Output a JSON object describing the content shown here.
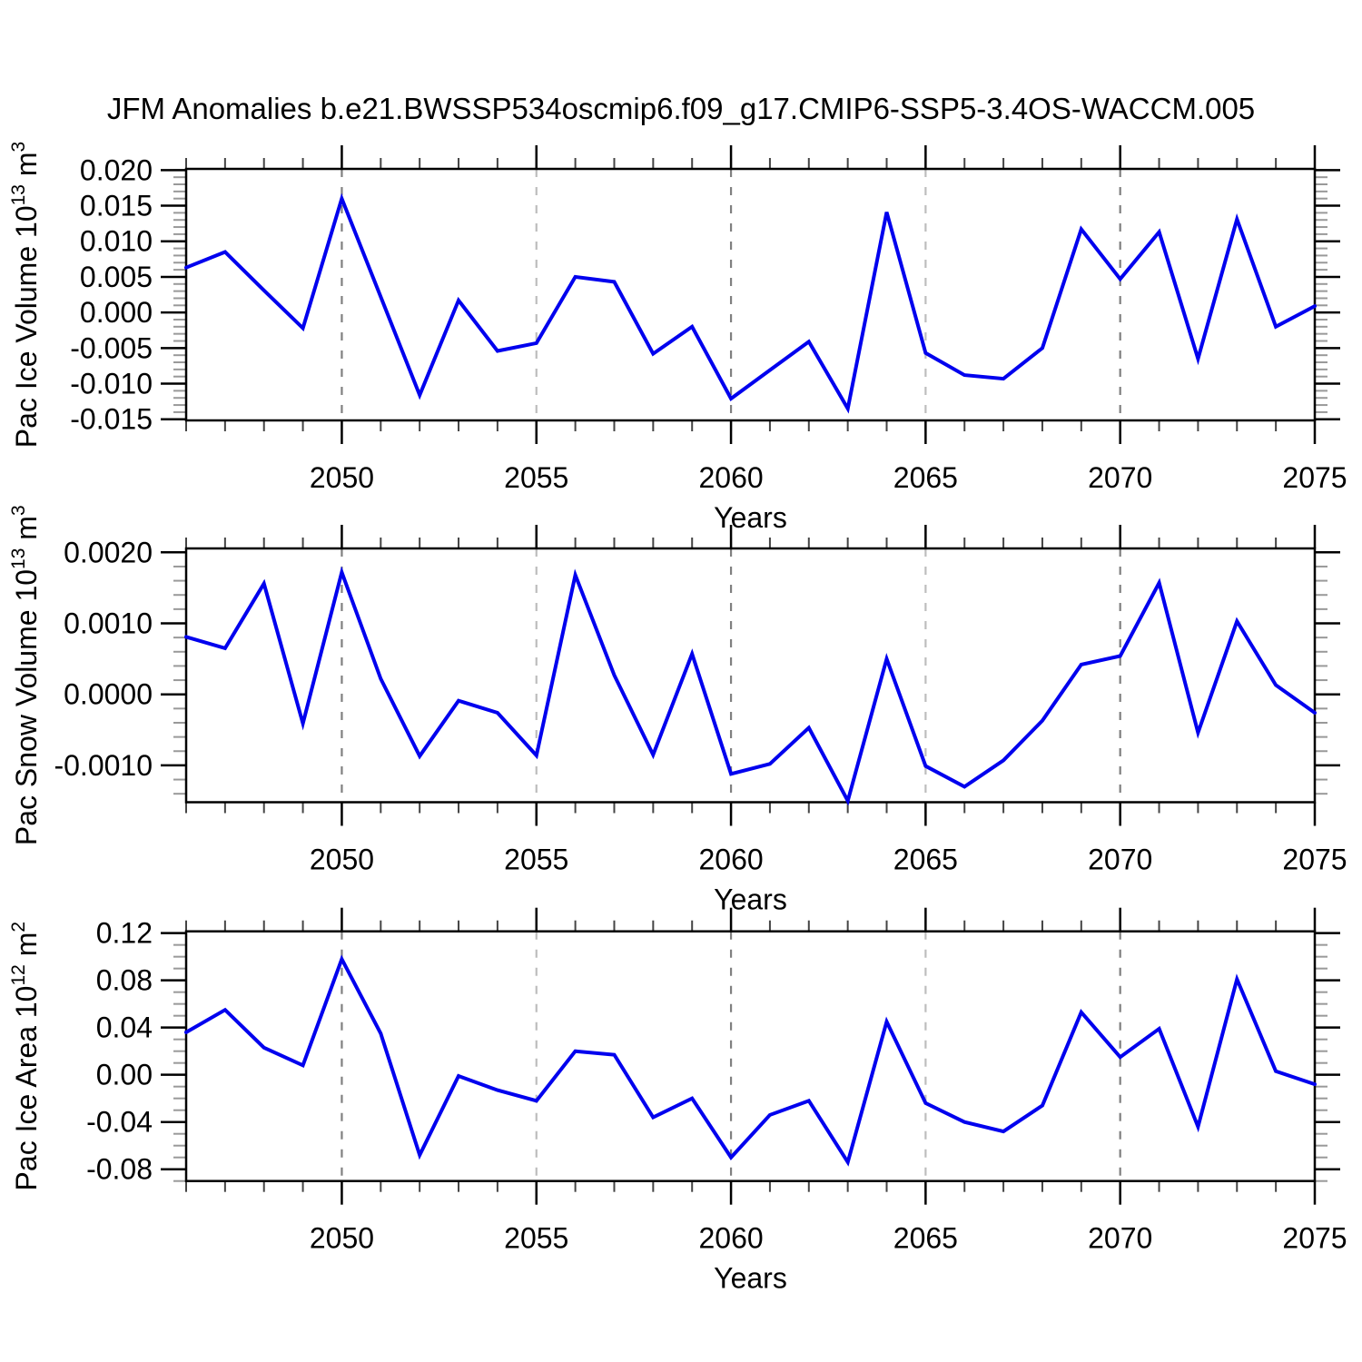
{
  "title": "JFM Anomalies b.e21.BWSSP534oscmip6.f09_g17.CMIP6-SSP5-3.4OS-WACCM.005",
  "xlabel": "Years",
  "x_axis": {
    "start": 2046,
    "end": 2075,
    "major_tick_labels": [
      "2050",
      "2055",
      "2060",
      "2065",
      "2070",
      "2075"
    ],
    "major_ticks": [
      2050,
      2055,
      2060,
      2065,
      2070,
      2075
    ],
    "gridlines_dark": [
      2050,
      2060,
      2070
    ],
    "gridlines_light": [
      2055,
      2065
    ]
  },
  "colors": {
    "line": "#0000ee",
    "axis": "#000000",
    "minor_tick": "#999999",
    "x_minor_tick": "#444444",
    "grid_dark": "#808080",
    "grid_light": "#bdbdbd"
  },
  "chart_data": [
    {
      "type": "line",
      "name": "pac_ice_volume",
      "ylabel": "Pac Ice Volume 10^13 m^3",
      "ylabel_parts": [
        {
          "t": "Pac Ice Volume 10"
        },
        {
          "t": "13",
          "sup": true
        },
        {
          "t": " m"
        },
        {
          "t": "3",
          "sup": true
        }
      ],
      "xlabel": "Years",
      "x": [
        2046,
        2047,
        2048,
        2049,
        2050,
        2051,
        2052,
        2053,
        2054,
        2055,
        2056,
        2057,
        2058,
        2059,
        2060,
        2061,
        2062,
        2063,
        2064,
        2065,
        2066,
        2067,
        2068,
        2069,
        2070,
        2071,
        2072,
        2073,
        2074,
        2075
      ],
      "values": [
        0.0063,
        0.0085,
        0.0031,
        -0.0022,
        0.016,
        0.0022,
        -0.0116,
        0.0017,
        -0.0054,
        -0.0043,
        0.005,
        0.0043,
        -0.0058,
        -0.002,
        -0.0121,
        -0.0081,
        -0.0041,
        -0.0135,
        0.0141,
        -0.0057,
        -0.0088,
        -0.0093,
        -0.005,
        0.0117,
        0.0047,
        0.0113,
        -0.0065,
        0.0131,
        -0.002,
        0.0009
      ],
      "ylim": [
        -0.01516,
        0.02017
      ],
      "yticks": [
        -0.015,
        -0.01,
        -0.005,
        0.0,
        0.005,
        0.01,
        0.015,
        0.02
      ],
      "ytick_labels": [
        "-0.015",
        "-0.010",
        "-0.005",
        "0.000",
        "0.005",
        "0.010",
        "0.015",
        "0.020"
      ],
      "minor_step": 0.001,
      "grid": "vertical-dashed-only"
    },
    {
      "type": "line",
      "name": "pac_snow_volume",
      "ylabel": "Pac Snow Volume 10^13 m^3",
      "ylabel_parts": [
        {
          "t": "Pac Snow Volume 10"
        },
        {
          "t": "13",
          "sup": true
        },
        {
          "t": " m"
        },
        {
          "t": "3",
          "sup": true
        }
      ],
      "xlabel": "Years",
      "x": [
        2046,
        2047,
        2048,
        2049,
        2050,
        2051,
        2052,
        2053,
        2054,
        2055,
        2056,
        2057,
        2058,
        2059,
        2060,
        2061,
        2062,
        2063,
        2064,
        2065,
        2066,
        2067,
        2068,
        2069,
        2070,
        2071,
        2072,
        2073,
        2074,
        2075
      ],
      "values": [
        0.00081,
        0.00065,
        0.00156,
        -0.00041,
        0.00172,
        0.00022,
        -0.00087,
        -9e-05,
        -0.00026,
        -0.00086,
        0.00168,
        0.00027,
        -0.00085,
        0.00057,
        -0.00112,
        -0.00098,
        -0.00047,
        -0.0015,
        0.0005,
        -0.00101,
        -0.0013,
        -0.00093,
        -0.00037,
        0.00042,
        0.00054,
        0.00157,
        -0.00054,
        0.00103,
        0.00013,
        -0.00026
      ],
      "ylim": [
        -0.001519,
        0.002055
      ],
      "yticks": [
        -0.001,
        0.0,
        0.001,
        0.002
      ],
      "ytick_labels": [
        "-0.0010",
        "0.0000",
        "0.0010",
        "0.0020"
      ],
      "minor_step": 0.0002,
      "grid": "vertical-dashed-only"
    },
    {
      "type": "line",
      "name": "pac_ice_area",
      "ylabel": "Pac Ice Area 10^12 m^2",
      "ylabel_parts": [
        {
          "t": "Pac Ice Area 10"
        },
        {
          "t": "12",
          "sup": true
        },
        {
          "t": " m"
        },
        {
          "t": "2",
          "sup": true
        }
      ],
      "xlabel": "Years",
      "x": [
        2046,
        2047,
        2048,
        2049,
        2050,
        2051,
        2052,
        2053,
        2054,
        2055,
        2056,
        2057,
        2058,
        2059,
        2060,
        2061,
        2062,
        2063,
        2064,
        2065,
        2066,
        2067,
        2068,
        2069,
        2070,
        2071,
        2072,
        2073,
        2074,
        2075
      ],
      "values": [
        0.036,
        0.055,
        0.023,
        0.008,
        0.098,
        0.035,
        -0.068,
        -0.001,
        -0.013,
        -0.022,
        0.02,
        0.017,
        -0.036,
        -0.02,
        -0.07,
        -0.034,
        -0.022,
        -0.074,
        0.045,
        -0.024,
        -0.04,
        -0.048,
        -0.026,
        0.053,
        0.015,
        0.039,
        -0.044,
        0.081,
        0.003,
        -0.008
      ],
      "ylim": [
        -0.09,
        0.1215
      ],
      "yticks": [
        -0.08,
        -0.04,
        0.0,
        0.04,
        0.08,
        0.12
      ],
      "ytick_labels": [
        "-0.08",
        "-0.04",
        "0.00",
        "0.04",
        "0.08",
        "0.12"
      ],
      "minor_step": 0.01,
      "grid": "vertical-dashed-only"
    }
  ]
}
